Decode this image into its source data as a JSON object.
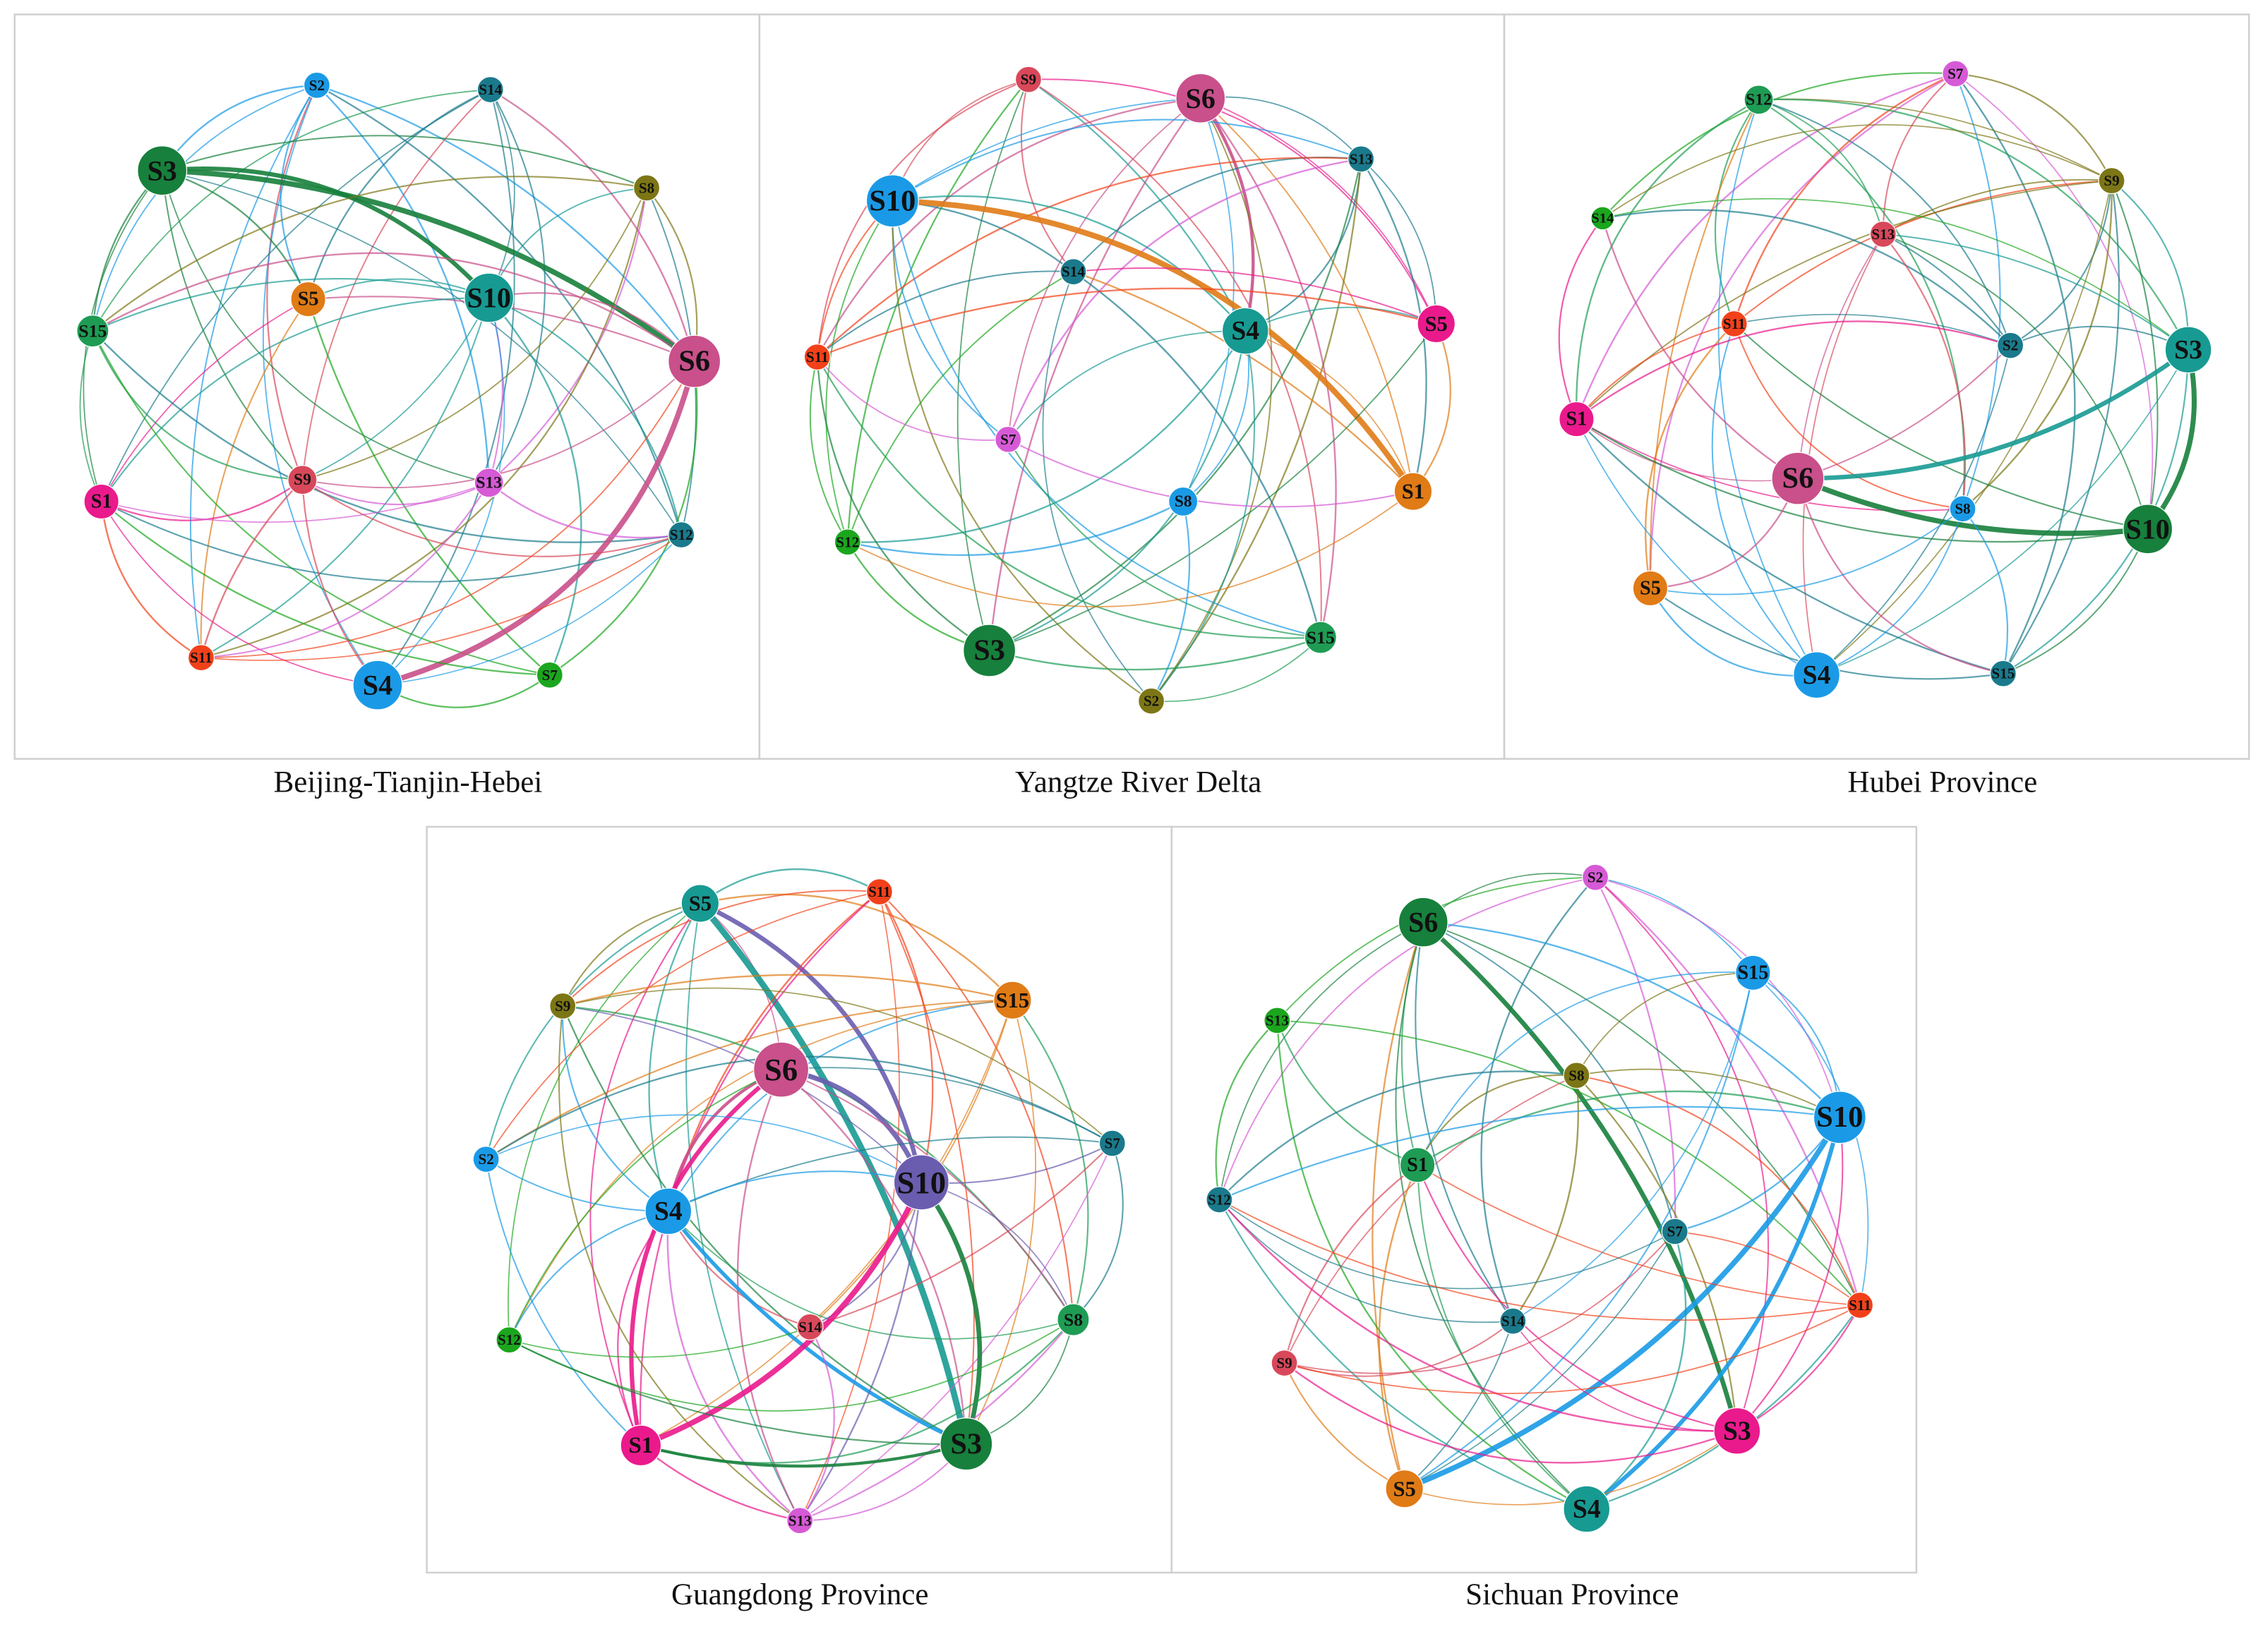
{
  "panels": [
    {
      "caption": "Beijing-Tianjin-Hebei",
      "nodes": [
        "S2",
        "S14",
        "S3",
        "S8",
        "S5",
        "S10",
        "S15",
        "S6",
        "S1",
        "S9",
        "S13",
        "S12",
        "S11",
        "S7",
        "S4"
      ]
    },
    {
      "caption": "Yangtze River Delta",
      "nodes": [
        "S9",
        "S6",
        "S13",
        "S10",
        "S14",
        "S4",
        "S5",
        "S11",
        "S7",
        "S1",
        "S8",
        "S12",
        "S15",
        "S3",
        "S2"
      ]
    },
    {
      "caption": "Hubei Province",
      "nodes": [
        "S7",
        "S12",
        "S9",
        "S14",
        "S13",
        "S11",
        "S2",
        "S3",
        "S1",
        "S6",
        "S8",
        "S10",
        "S5",
        "S4",
        "S15"
      ]
    },
    {
      "caption": "Guangdong Province",
      "nodes": [
        "S5",
        "S11",
        "S15",
        "S9",
        "S6",
        "S7",
        "S2",
        "S4",
        "S10",
        "S8",
        "S14",
        "S12",
        "S1",
        "S3",
        "S13"
      ]
    },
    {
      "caption": "Sichuan Province",
      "nodes": [
        "S2",
        "S6",
        "S15",
        "S13",
        "S8",
        "S10",
        "S1",
        "S12",
        "S7",
        "S14",
        "S11",
        "S9",
        "S3",
        "S5",
        "S4"
      ]
    }
  ]
}
